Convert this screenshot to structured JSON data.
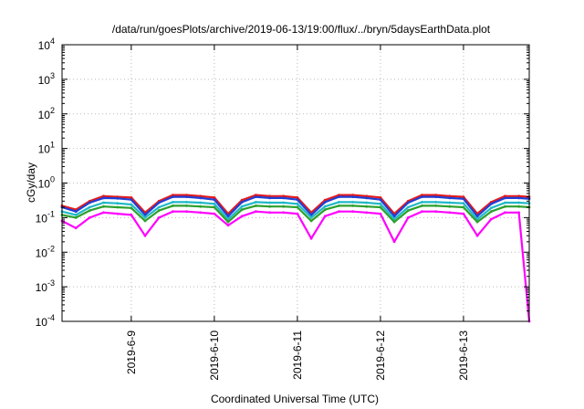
{
  "chart_data": {
    "type": "line",
    "title": "/data/run/goesPlots/archive/2019-06-13/19:00/flux/../bryn/5daysEarthData.plot",
    "xlabel": "Coordinated Universal Time (UTC)",
    "ylabel": "cGy/day",
    "yscale": "log",
    "ylim": [
      0.0001,
      10000
    ],
    "xlim": [
      "2019-06-08T04:00",
      "2019-06-13T19:00"
    ],
    "grid": true,
    "y_ticks": [
      {
        "base": "10",
        "exp": "-4",
        "value": 0.0001
      },
      {
        "base": "10",
        "exp": "-3",
        "value": 0.001
      },
      {
        "base": "10",
        "exp": "-2",
        "value": 0.01
      },
      {
        "base": "10",
        "exp": "-1",
        "value": 0.1
      },
      {
        "base": "10",
        "exp": "0",
        "value": 1
      },
      {
        "base": "10",
        "exp": "1",
        "value": 10
      },
      {
        "base": "10",
        "exp": "2",
        "value": 100
      },
      {
        "base": "10",
        "exp": "3",
        "value": 1000
      },
      {
        "base": "10",
        "exp": "4",
        "value": 10000
      }
    ],
    "x_ticks": [
      {
        "label": "2019-6-9",
        "value": "2019-06-09T00:00"
      },
      {
        "label": "2019-6-10",
        "value": "2019-06-10T00:00"
      },
      {
        "label": "2019-6-11",
        "value": "2019-06-11T00:00"
      },
      {
        "label": "2019-6-12",
        "value": "2019-06-12T00:00"
      },
      {
        "label": "2019-6-13",
        "value": "2019-06-13T00:00"
      }
    ],
    "x": [
      "2019-06-08T04:00",
      "2019-06-08T08:00",
      "2019-06-08T12:00",
      "2019-06-08T16:00",
      "2019-06-08T20:00",
      "2019-06-09T00:00",
      "2019-06-09T04:00",
      "2019-06-09T08:00",
      "2019-06-09T12:00",
      "2019-06-09T16:00",
      "2019-06-09T20:00",
      "2019-06-10T00:00",
      "2019-06-10T04:00",
      "2019-06-10T08:00",
      "2019-06-10T12:00",
      "2019-06-10T16:00",
      "2019-06-10T20:00",
      "2019-06-11T00:00",
      "2019-06-11T04:00",
      "2019-06-11T08:00",
      "2019-06-11T12:00",
      "2019-06-11T16:00",
      "2019-06-11T20:00",
      "2019-06-12T00:00",
      "2019-06-12T04:00",
      "2019-06-12T08:00",
      "2019-06-12T12:00",
      "2019-06-12T16:00",
      "2019-06-12T20:00",
      "2019-06-13T00:00",
      "2019-06-13T04:00",
      "2019-06-13T08:00",
      "2019-06-13T12:00",
      "2019-06-13T16:00",
      "2019-06-13T19:00"
    ],
    "series": [
      {
        "color": "#e41a1c",
        "values": [
          0.22,
          0.17,
          0.3,
          0.42,
          0.4,
          0.38,
          0.14,
          0.3,
          0.45,
          0.45,
          0.42,
          0.38,
          0.13,
          0.32,
          0.45,
          0.42,
          0.42,
          0.38,
          0.14,
          0.32,
          0.45,
          0.45,
          0.42,
          0.38,
          0.13,
          0.3,
          0.45,
          0.45,
          0.42,
          0.4,
          0.13,
          0.28,
          0.42,
          0.42,
          0.4
        ]
      },
      {
        "color": "#1f3fd6",
        "values": [
          0.2,
          0.15,
          0.27,
          0.37,
          0.36,
          0.33,
          0.12,
          0.27,
          0.4,
          0.4,
          0.37,
          0.33,
          0.11,
          0.28,
          0.4,
          0.37,
          0.37,
          0.33,
          0.12,
          0.28,
          0.4,
          0.4,
          0.37,
          0.33,
          0.11,
          0.27,
          0.4,
          0.4,
          0.37,
          0.35,
          0.11,
          0.25,
          0.37,
          0.37,
          0.35
        ]
      },
      {
        "color": "#1fb8c8",
        "values": [
          0.15,
          0.12,
          0.2,
          0.27,
          0.26,
          0.24,
          0.1,
          0.2,
          0.28,
          0.28,
          0.27,
          0.25,
          0.09,
          0.21,
          0.28,
          0.27,
          0.27,
          0.25,
          0.1,
          0.21,
          0.28,
          0.28,
          0.27,
          0.25,
          0.09,
          0.2,
          0.28,
          0.28,
          0.27,
          0.26,
          0.09,
          0.19,
          0.27,
          0.27,
          0.26
        ]
      },
      {
        "color": "#2ca02c",
        "values": [
          0.12,
          0.1,
          0.16,
          0.21,
          0.2,
          0.19,
          0.08,
          0.16,
          0.22,
          0.22,
          0.21,
          0.2,
          0.075,
          0.17,
          0.22,
          0.21,
          0.21,
          0.2,
          0.08,
          0.17,
          0.22,
          0.22,
          0.21,
          0.2,
          0.075,
          0.16,
          0.22,
          0.22,
          0.21,
          0.2,
          0.075,
          0.15,
          0.21,
          0.21,
          0.2
        ]
      },
      {
        "color": "#ff00ff",
        "values": [
          0.08,
          0.05,
          0.1,
          0.14,
          0.13,
          0.12,
          0.03,
          0.1,
          0.15,
          0.15,
          0.14,
          0.13,
          0.06,
          0.11,
          0.15,
          0.14,
          0.14,
          0.13,
          0.025,
          0.11,
          0.15,
          0.15,
          0.14,
          0.13,
          0.02,
          0.1,
          0.15,
          0.15,
          0.14,
          0.13,
          0.03,
          0.09,
          0.14,
          0.14,
          0.0001
        ]
      }
    ]
  }
}
